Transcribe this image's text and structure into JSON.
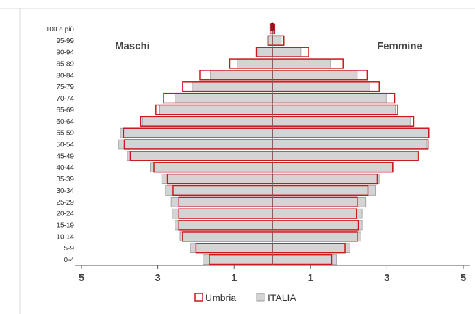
{
  "chart_data": {
    "type": "bar",
    "orientation": "horizontal",
    "layout": "population-pyramid",
    "categories": [
      "100 e più",
      "95-99",
      "90-94",
      "85-89",
      "80-84",
      "75-79",
      "70-74",
      "65-69",
      "60-64",
      "55-59",
      "50-54",
      "45-49",
      "40-44",
      "35-39",
      "30-34",
      "25-29",
      "20-24",
      "15-19",
      "10-14",
      "5-9",
      "0-4"
    ],
    "left_label": "Maschi",
    "right_label": "Femmine",
    "x_ticks": [
      {
        "value": -5,
        "label": "5"
      },
      {
        "value": -3,
        "label": "3"
      },
      {
        "value": -1,
        "label": "1"
      },
      {
        "value": 1,
        "label": "1"
      },
      {
        "value": 3,
        "label": "3"
      },
      {
        "value": 5,
        "label": "5"
      }
    ],
    "xlim": [
      -5,
      5
    ],
    "series": [
      {
        "name": "ITALIA",
        "style": "filled",
        "males": [
          0.02,
          0.1,
          0.38,
          0.92,
          1.62,
          2.1,
          2.55,
          2.95,
          3.4,
          3.98,
          4.02,
          3.8,
          3.2,
          2.9,
          2.8,
          2.65,
          2.62,
          2.55,
          2.42,
          2.15,
          1.82
        ],
        "females": [
          0.03,
          0.23,
          0.75,
          1.52,
          2.22,
          2.55,
          2.98,
          3.22,
          3.62,
          4.1,
          4.05,
          3.8,
          3.18,
          2.8,
          2.7,
          2.45,
          2.35,
          2.35,
          2.32,
          2.03,
          1.68
        ]
      },
      {
        "name": "Umbria",
        "style": "outline",
        "males": [
          0.06,
          0.12,
          0.42,
          1.12,
          1.9,
          2.35,
          2.85,
          3.05,
          3.45,
          3.9,
          3.88,
          3.72,
          3.1,
          2.75,
          2.6,
          2.45,
          2.45,
          2.45,
          2.35,
          2.0,
          1.65
        ],
        "females": [
          0.06,
          0.3,
          0.95,
          1.85,
          2.48,
          2.8,
          3.2,
          3.28,
          3.7,
          4.1,
          4.08,
          3.82,
          3.15,
          2.75,
          2.5,
          2.22,
          2.2,
          2.25,
          2.22,
          1.9,
          1.55
        ]
      }
    ],
    "legend_position": "bottom",
    "grid": false
  },
  "colors": {
    "italia_fill": "#d4d4d4",
    "italia_stroke": "#999999",
    "umbria_stroke": "#c8191f",
    "axis": "#555555",
    "center_marker": "#8b1a1a"
  }
}
